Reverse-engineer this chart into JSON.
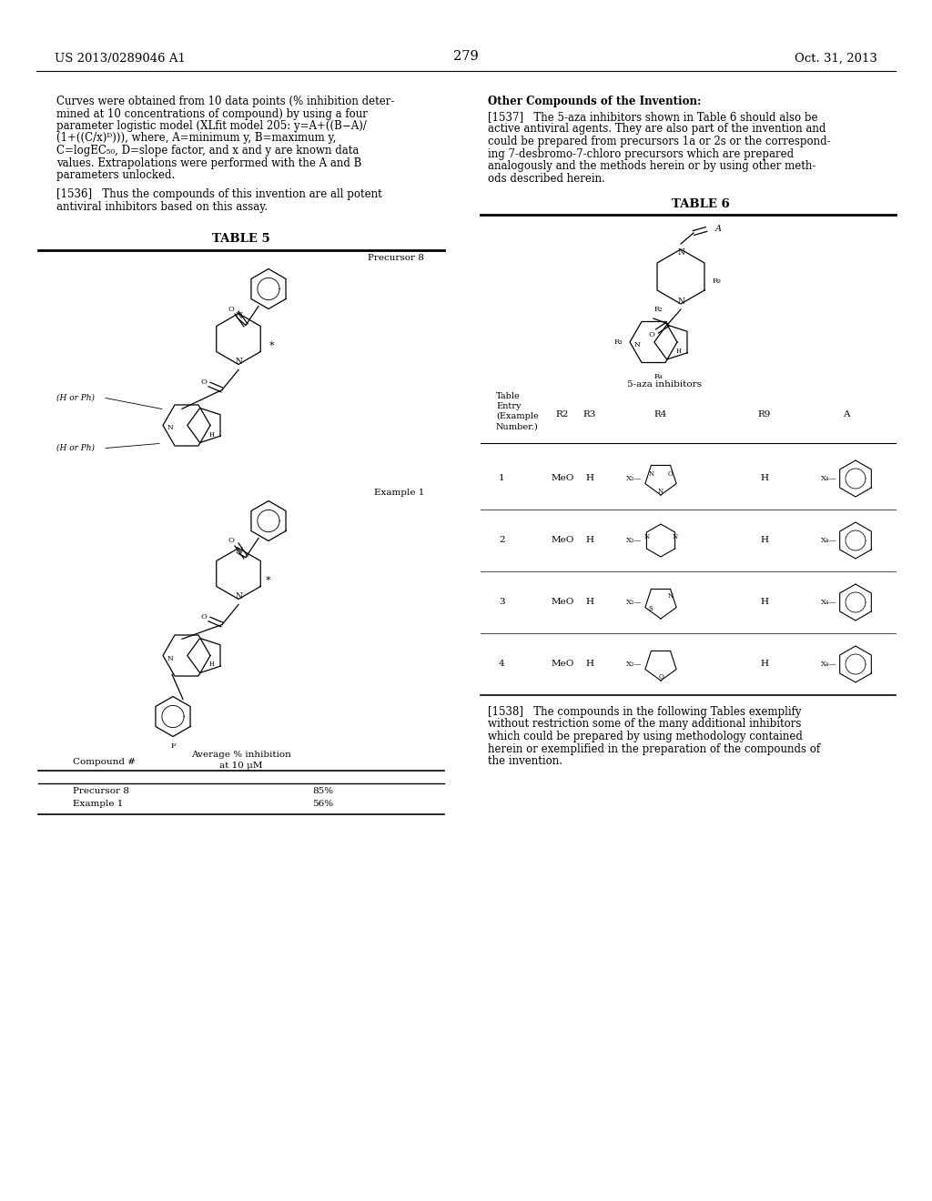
{
  "background_color": "#ffffff",
  "page_number": "279",
  "header_left": "US 2013/0289046 A1",
  "header_right": "Oct. 31, 2013",
  "paragraph1_lines": [
    "Curves were obtained from 10 data points (% inhibition deter-",
    "mined at 10 concentrations of compound) by using a four",
    "parameter logistic model (XLfit model 205: y=A+((B−A)/",
    "(1+((C/x)ᴰ))), where, A=minimum y, B=maximum y,",
    "C=logEC₅₀, D=slope factor, and x and y are known data",
    "values. Extrapolations were performed with the A and B",
    "parameters unlocked."
  ],
  "paragraph1536_lines": [
    "[1536]   Thus the compounds of this invention are all potent",
    "antiviral inhibitors based on this assay."
  ],
  "table5_title": "TABLE 5",
  "table5_label_precursor8": "Precursor 8",
  "table5_label_example1": "Example 1",
  "table5_col_header1": "Average % inhibition",
  "table5_col_header2": "at 10 μM",
  "table5_row1_compound": "Precursor 8",
  "table5_row1_value": "85%",
  "table5_row2_compound": "Example 1",
  "table5_row2_value": "56%",
  "table5_col_label": "Compound #",
  "right_title": "Other Compounds of the Invention:",
  "paragraph1537_lines": [
    "[1537]   The 5-aza inhibitors shown in Table 6 should also be",
    "active antiviral agents. They are also part of the invention and",
    "could be prepared from precursors 1a or 2s or the correspond-",
    "ing 7-desbromo-7-chloro precursors which are prepared",
    "analogously and the methods herein or by using other meth-",
    "ods described herein."
  ],
  "table6_title": "TABLE 6",
  "table6_5aza_label": "5-aza inhibitors",
  "paragraph1538_lines": [
    "[1538]   The compounds in the following Tables exemplify",
    "without restriction some of the many additional inhibitors",
    "which could be prepared by using methodology contained",
    "herein or exemplified in the preparation of the compounds of",
    "the invention."
  ],
  "note_hph": "(H or Ph)",
  "font_size_body": 8.5,
  "font_size_header": 9.5,
  "font_size_table_title": 9.5,
  "font_size_small": 7.5
}
